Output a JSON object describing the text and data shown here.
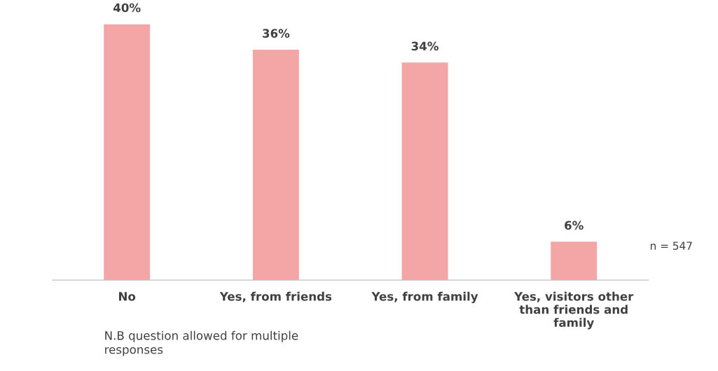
{
  "chart_data": {
    "type": "bar",
    "categories": [
      "No",
      "Yes, from friends",
      "Yes, from family",
      "Yes, visitors other than friends and family"
    ],
    "values": [
      40,
      36,
      34,
      6
    ],
    "value_labels": [
      "40%",
      "36%",
      "34%",
      "6%"
    ],
    "color": "#f4a6a6",
    "annotations": [
      "n = 547",
      "N.B question allowed for multiple responses"
    ]
  }
}
